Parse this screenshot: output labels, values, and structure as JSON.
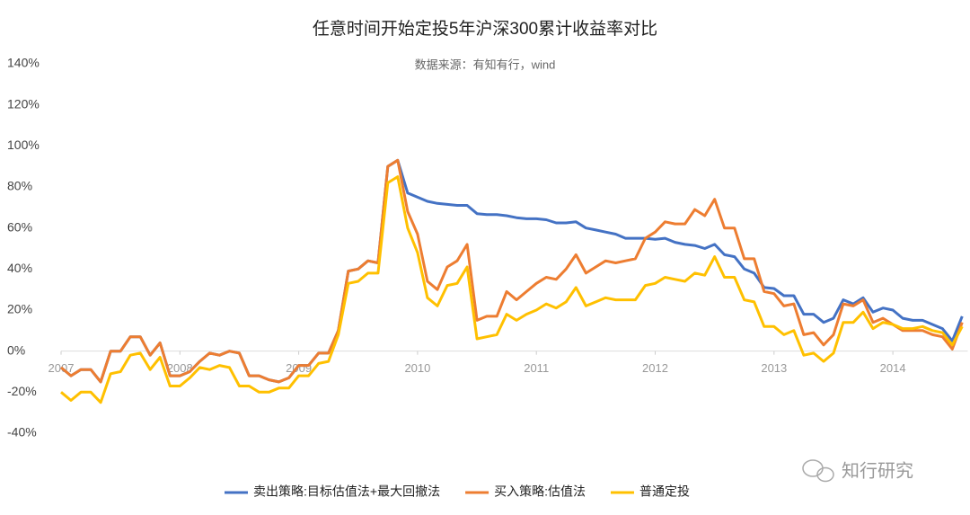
{
  "chart_data": {
    "type": "line",
    "title": "任意时间开始定投5年沪深300累计收益率对比",
    "subtitle": "数据来源：有知有行，wind",
    "watermark": "知行研究",
    "x": [
      2007,
      2007.083,
      2007.167,
      2007.25,
      2007.333,
      2007.417,
      2007.5,
      2007.583,
      2007.667,
      2007.75,
      2007.833,
      2007.917,
      2008,
      2008.083,
      2008.167,
      2008.25,
      2008.333,
      2008.417,
      2008.5,
      2008.583,
      2008.667,
      2008.75,
      2008.833,
      2008.917,
      2009,
      2009.083,
      2009.167,
      2009.25,
      2009.333,
      2009.417,
      2009.5,
      2009.583,
      2009.667,
      2009.75,
      2009.833,
      2009.917,
      2010,
      2010.083,
      2010.167,
      2010.25,
      2010.333,
      2010.417,
      2010.5,
      2010.583,
      2010.667,
      2010.75,
      2010.833,
      2010.917,
      2011,
      2011.083,
      2011.167,
      2011.25,
      2011.333,
      2011.417,
      2011.5,
      2011.583,
      2011.667,
      2011.75,
      2011.833,
      2011.917,
      2012,
      2012.083,
      2012.167,
      2012.25,
      2012.333,
      2012.417,
      2012.5,
      2012.583,
      2012.667,
      2012.75,
      2012.833,
      2012.917,
      2013,
      2013.083,
      2013.167,
      2013.25,
      2013.333,
      2013.417,
      2013.5,
      2013.583,
      2013.667,
      2013.75,
      2013.833,
      2013.917,
      2014,
      2014.083,
      2014.167,
      2014.25,
      2014.333,
      2014.417,
      2014.5,
      2014.583
    ],
    "series": [
      {
        "name": "卖出策略:目标估值法+最大回撤法",
        "color": "#4472c4",
        "values": [
          -8,
          -12,
          -9,
          -9,
          -15,
          0,
          0,
          7,
          7,
          -2,
          4,
          -12,
          -12,
          -10,
          -5,
          -1,
          -2,
          0,
          -1,
          -12,
          -12,
          -14,
          -15,
          -13,
          -7,
          -7,
          -1,
          -1,
          10,
          39,
          40,
          44,
          43,
          90,
          93,
          77,
          75,
          73,
          72,
          71.5,
          71,
          71,
          67,
          66.5,
          66.5,
          66,
          65,
          64.5,
          64.5,
          64,
          62.5,
          62.5,
          63,
          60,
          59,
          58,
          57,
          55,
          55,
          55,
          54.5,
          55,
          53,
          52,
          51.5,
          50,
          52,
          47,
          46,
          40,
          38,
          31,
          30.5,
          27,
          27,
          18,
          18,
          14,
          16,
          25,
          23,
          26,
          19,
          21,
          20,
          16,
          15,
          15,
          13,
          11,
          5,
          17
        ]
      },
      {
        "name": "买入策略:估值法",
        "color": "#ed7d31",
        "values": [
          -8,
          -12,
          -9,
          -9,
          -15,
          0,
          0,
          7,
          7,
          -2,
          4,
          -12,
          -12,
          -10,
          -5,
          -1,
          -2,
          0,
          -1,
          -12,
          -12,
          -14,
          -15,
          -13,
          -7,
          -7,
          -1,
          -1,
          10,
          39,
          40,
          44,
          43,
          90,
          93,
          68,
          57,
          34,
          30,
          41,
          44,
          52,
          15,
          17,
          17,
          29,
          25,
          29,
          33,
          36,
          35,
          40,
          47,
          38,
          41,
          44,
          43,
          44,
          45,
          55,
          58,
          63,
          62,
          62,
          69,
          66,
          74,
          60,
          60,
          45,
          45,
          29,
          28,
          22,
          23,
          8,
          9,
          3,
          8,
          23,
          22,
          25,
          14,
          16,
          13,
          10,
          10,
          10,
          8,
          7,
          1,
          14
        ]
      },
      {
        "name": "普通定投",
        "color": "#ffc000",
        "values": [
          -20,
          -24,
          -20,
          -20,
          -25,
          -11,
          -10,
          -2,
          -1,
          -9,
          -3,
          -17,
          -17,
          -13,
          -8,
          -9,
          -7,
          -8,
          -17,
          -17,
          -20,
          -20,
          -18,
          -18,
          -12,
          -12,
          -6,
          -5,
          8,
          33,
          34,
          38,
          38,
          82,
          85,
          60,
          48,
          26,
          22,
          32,
          33,
          41,
          6,
          7,
          8,
          18,
          15,
          18,
          20,
          23,
          21,
          24,
          31,
          22,
          24,
          26,
          25,
          25,
          25,
          32,
          33,
          36,
          35,
          34,
          38,
          37,
          46,
          36,
          36,
          25,
          24,
          12,
          12,
          8,
          10,
          -2,
          -1,
          -5,
          -1,
          14,
          14,
          19,
          11,
          14,
          13,
          11,
          11,
          12,
          10,
          9,
          3,
          12
        ]
      }
    ],
    "xlim": [
      2007,
      2014.6
    ],
    "xticks": [
      2007,
      2008,
      2009,
      2010,
      2011,
      2012,
      2013,
      2014
    ],
    "ylim": [
      -40,
      140
    ],
    "yticks": [
      {
        "value": -40,
        "label": "-40%"
      },
      {
        "value": -20,
        "label": "-20%"
      },
      {
        "value": 0,
        "label": "0%"
      },
      {
        "value": 20,
        "label": "20%"
      },
      {
        "value": 40,
        "label": "40%"
      },
      {
        "value": 60,
        "label": "60%"
      },
      {
        "value": 80,
        "label": "80%"
      },
      {
        "value": 100,
        "label": "100%"
      },
      {
        "value": 120,
        "label": "120%"
      },
      {
        "value": 140,
        "label": "140%"
      }
    ],
    "grid": false
  }
}
